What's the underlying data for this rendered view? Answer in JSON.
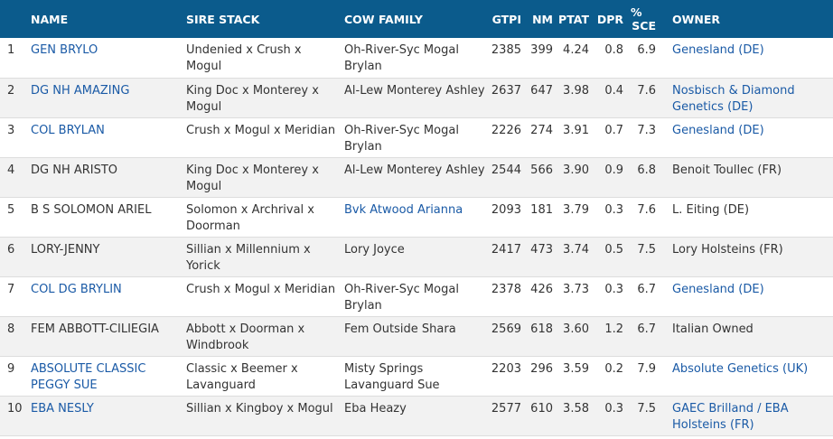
{
  "headers": {
    "rank": "",
    "name": "NAME",
    "sire_stack": "SIRE STACK",
    "cow_family": "COW FAMILY",
    "gtpi": "GTPI",
    "nm": "NM",
    "ptat": "PTAT",
    "dpr": "DPR",
    "sce_line1": "%",
    "sce_line2": "SCE",
    "owner": "OWNER"
  },
  "rows": [
    {
      "rank": "1",
      "name": "GEN BRYLO",
      "name_link": true,
      "sire": "Undenied x Crush x Mogul",
      "cow": "Oh-River-Syc Mogal Brylan",
      "cow_link": false,
      "gtpi": "2385",
      "nm": "399",
      "ptat": "4.24",
      "dpr": "0.8",
      "sce": "6.9",
      "owner": "Genesland (DE)",
      "owner_link": true
    },
    {
      "rank": "2",
      "name": "DG NH AMAZING",
      "name_link": true,
      "sire": "King Doc x Monterey x Mogul",
      "cow": "Al-Lew Monterey Ashley",
      "cow_link": false,
      "gtpi": "2637",
      "nm": "647",
      "ptat": "3.98",
      "dpr": "0.4",
      "sce": "7.6",
      "owner": "Nosbisch & Diamond Genetics (DE)",
      "owner_link": true
    },
    {
      "rank": "3",
      "name": "COL BRYLAN",
      "name_link": true,
      "sire": "Crush x Mogul x Meridian",
      "cow": "Oh-River-Syc Mogal Brylan",
      "cow_link": false,
      "gtpi": "2226",
      "nm": "274",
      "ptat": "3.91",
      "dpr": "0.7",
      "sce": "7.3",
      "owner": "Genesland (DE)",
      "owner_link": true
    },
    {
      "rank": "4",
      "name": "DG NH ARISTO",
      "name_link": false,
      "sire": "King Doc x Monterey x Mogul",
      "cow": "Al-Lew Monterey Ashley",
      "cow_link": false,
      "gtpi": "2544",
      "nm": "566",
      "ptat": "3.90",
      "dpr": "0.9",
      "sce": "6.8",
      "owner": "Benoit Toullec (FR)",
      "owner_link": false
    },
    {
      "rank": "5",
      "name": "B S SOLOMON ARIEL",
      "name_link": false,
      "sire": "Solomon x Archrival x Doorman",
      "cow": "Bvk Atwood Arianna",
      "cow_link": true,
      "gtpi": "2093",
      "nm": "181",
      "ptat": "3.79",
      "dpr": "0.3",
      "sce": "7.6",
      "owner": "L. Eiting (DE)",
      "owner_link": false
    },
    {
      "rank": "6",
      "name": "LORY-JENNY",
      "name_link": false,
      "sire": "Sillian x Millennium x Yorick",
      "cow": "Lory Joyce",
      "cow_link": false,
      "gtpi": "2417",
      "nm": "473",
      "ptat": "3.74",
      "dpr": "0.5",
      "sce": "7.5",
      "owner": "Lory Holsteins (FR)",
      "owner_link": false
    },
    {
      "rank": "7",
      "name": "COL DG BRYLIN",
      "name_link": true,
      "sire": "Crush x Mogul x Meridian",
      "cow": "Oh-River-Syc Mogal Brylan",
      "cow_link": false,
      "gtpi": "2378",
      "nm": "426",
      "ptat": "3.73",
      "dpr": "0.3",
      "sce": "6.7",
      "owner": "Genesland (DE)",
      "owner_link": true
    },
    {
      "rank": "8",
      "name": "FEM ABBOTT-CILIEGIA",
      "name_link": false,
      "sire": "Abbott x Doorman x Windbrook",
      "cow": "Fem Outside Shara",
      "cow_link": false,
      "gtpi": "2569",
      "nm": "618",
      "ptat": "3.60",
      "dpr": "1.2",
      "sce": "6.7",
      "owner": "Italian Owned",
      "owner_link": false
    },
    {
      "rank": "9",
      "name": "ABSOLUTE CLASSIC PEGGY SUE",
      "name_link": true,
      "sire": "Classic x Beemer x Lavanguard",
      "cow": "Misty Springs Lavanguard Sue",
      "cow_link": false,
      "gtpi": "2203",
      "nm": "296",
      "ptat": "3.59",
      "dpr": "0.2",
      "sce": "7.9",
      "owner": "Absolute Genetics (UK)",
      "owner_link": true
    },
    {
      "rank": "10",
      "name": "EBA NESLY",
      "name_link": true,
      "sire": "Sillian x Kingboy x Mogul",
      "cow": "Eba Heazy",
      "cow_link": false,
      "gtpi": "2577",
      "nm": "610",
      "ptat": "3.58",
      "dpr": "0.3",
      "sce": "7.5",
      "owner": "GAEC Brilland / EBA Holsteins (FR)",
      "owner_link": true
    }
  ],
  "colors": {
    "header_bg": "#0b5b8c",
    "link": "#1a5aa6",
    "row_alt": "#f2f2f2"
  }
}
